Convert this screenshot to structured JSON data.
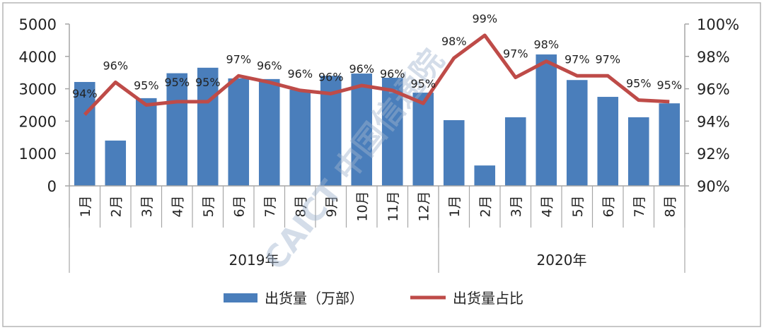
{
  "chart_data": {
    "type": "bar+line",
    "categories": [
      "1月",
      "2月",
      "3月",
      "4月",
      "5月",
      "6月",
      "7月",
      "8月",
      "9月",
      "10月",
      "11月",
      "12月",
      "1月",
      "2月",
      "3月",
      "4月",
      "5月",
      "6月",
      "7月",
      "8月"
    ],
    "groups": [
      {
        "label": "2019年",
        "count": 12
      },
      {
        "label": "2020年",
        "count": 8
      }
    ],
    "series": [
      {
        "name": "出货量（万部）",
        "type": "bar",
        "axis": "left",
        "color": "#4a7ebb",
        "values": [
          3210,
          1400,
          2710,
          3480,
          3650,
          3320,
          3300,
          2970,
          3400,
          3470,
          3340,
          2880,
          2030,
          630,
          2120,
          4060,
          3270,
          2750,
          2120,
          2550
        ]
      },
      {
        "name": "出货量占比",
        "type": "line",
        "axis": "right",
        "color": "#be4b48",
        "values": [
          94.4,
          96.4,
          95.0,
          95.2,
          95.2,
          96.8,
          96.4,
          95.9,
          95.7,
          96.2,
          95.9,
          95.1,
          97.9,
          99.3,
          96.7,
          97.7,
          96.8,
          96.8,
          95.3,
          95.2
        ],
        "data_labels": [
          "94%",
          "96%",
          "95%",
          "95%",
          "95%",
          "97%",
          "96%",
          "96%",
          "96%",
          "96%",
          "96%",
          "95%",
          "98%",
          "99%",
          "97%",
          "98%",
          "97%",
          "97%",
          "95%",
          "95%"
        ]
      }
    ],
    "y_left": {
      "min": 0,
      "max": 5000,
      "ticks": [
        "0",
        "1000",
        "2000",
        "3000",
        "4000",
        "5000"
      ]
    },
    "y_right": {
      "min": 90,
      "max": 100,
      "ticks": [
        "90%",
        "92%",
        "94%",
        "96%",
        "98%",
        "100%"
      ]
    },
    "grid": false,
    "legend_position": "bottom",
    "watermark": "CAICT 中国信通院"
  }
}
